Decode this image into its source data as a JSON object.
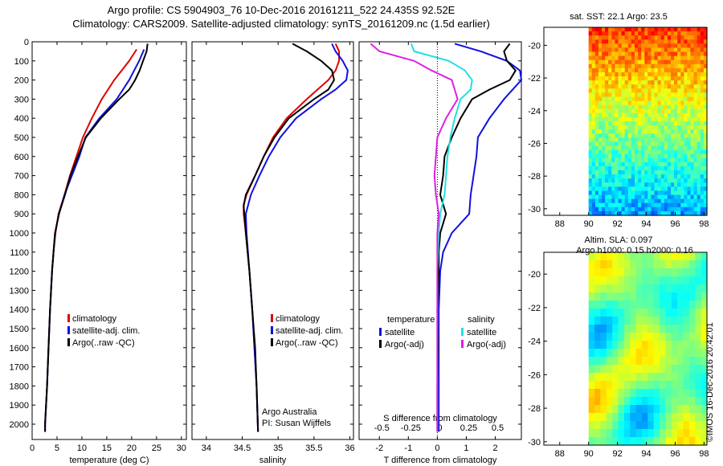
{
  "header": {
    "line1": "Argo profile: CS 5904903_76 10-Dec-2016 20161211_522 24.435S 92.52E",
    "line2": "Climatology: CARS2009. Satellite-adjusted climatology: synTS_20161209.nc (1.5d earlier)"
  },
  "colors": {
    "climatology": "#e00000",
    "satellite": "#1010e0",
    "argo": "#000000",
    "argo_salinity_diff": "#e020e0",
    "satellite_salinity_diff": "#20e0e0"
  },
  "chart_data": [
    {
      "id": "temperature",
      "type": "line",
      "xlabel": "temperature (deg C)",
      "ylabel": "",
      "xlim": [
        0,
        31
      ],
      "ylim": [
        2080,
        0
      ],
      "xticks": [
        0,
        5,
        10,
        15,
        20,
        25,
        30
      ],
      "yticks": [
        0,
        100,
        200,
        300,
        400,
        500,
        600,
        700,
        800,
        900,
        1000,
        1100,
        1200,
        1300,
        1400,
        1500,
        1600,
        1700,
        1800,
        1900,
        2000
      ],
      "legend": [
        "climatology",
        "satellite-adj. clim.",
        "Argo(..raw -QC)"
      ],
      "series": [
        {
          "name": "climatology",
          "color": "#e00000",
          "depth": [
            40,
            100,
            200,
            300,
            400,
            500,
            600,
            700,
            800,
            900,
            1000,
            1100,
            1200,
            1400,
            1600,
            1800,
            2000,
            2040
          ],
          "values": [
            21,
            19.5,
            16.5,
            14,
            12,
            10.2,
            8.9,
            7.6,
            6.5,
            5.3,
            4.7,
            4.3,
            4,
            3.6,
            3.3,
            3,
            2.6,
            2.6
          ]
        },
        {
          "name": "satellite-adj. clim.",
          "color": "#1010e0",
          "depth": [
            40,
            100,
            200,
            300,
            400,
            500,
            600,
            700,
            800,
            900,
            1000,
            1100,
            1200,
            1400,
            1600,
            1800,
            2000,
            2040
          ],
          "values": [
            22.5,
            21.5,
            19.5,
            17,
            13.5,
            10.7,
            9.5,
            8,
            6.5,
            5.4,
            4.6,
            4.3,
            4,
            3.6,
            3.3,
            3,
            2.6,
            2.6
          ]
        },
        {
          "name": "Argo(..raw -QC)",
          "color": "#000000",
          "depth": [
            10,
            50,
            100,
            150,
            200,
            250,
            300,
            400,
            500,
            600,
            700,
            800,
            900,
            1000,
            1100,
            1200,
            1400,
            1600,
            1800,
            2000,
            2040
          ],
          "values": [
            23.2,
            23,
            22.3,
            21.6,
            20.7,
            19.5,
            17.5,
            13.8,
            10.8,
            9.2,
            7.7,
            6.6,
            5.4,
            4.6,
            4.3,
            4,
            3.6,
            3.3,
            3,
            2.6,
            2.6
          ]
        }
      ]
    },
    {
      "id": "salinity",
      "type": "line",
      "xlabel": "salinity",
      "ylabel": "",
      "xlim": [
        33.8,
        36.05
      ],
      "ylim": [
        2080,
        0
      ],
      "xticks": [
        34,
        34.5,
        35,
        35.5,
        36
      ],
      "legend": [
        "climatology",
        "satellite-adj. clim.",
        "Argo(..raw -QC)"
      ],
      "annotation": [
        "Argo Australia",
        "PI: Susan Wijffels"
      ],
      "series": [
        {
          "name": "climatology",
          "color": "#e00000",
          "depth": [
            10,
            50,
            100,
            150,
            200,
            300,
            400,
            500,
            600,
            700,
            800,
            850,
            900,
            1000,
            1200,
            1400,
            1600,
            1800,
            2040
          ],
          "values": [
            35.8,
            35.85,
            35.85,
            35.8,
            35.7,
            35.4,
            35.12,
            34.93,
            34.8,
            34.68,
            34.56,
            34.52,
            34.52,
            34.55,
            34.6,
            34.64,
            34.67,
            34.7,
            34.72
          ]
        },
        {
          "name": "satellite-adj. clim.",
          "color": "#1010e0",
          "depth": [
            10,
            50,
            100,
            150,
            200,
            250,
            300,
            400,
            500,
            600,
            700,
            800,
            900,
            1000,
            1200,
            1400,
            1600,
            1800,
            2040
          ],
          "values": [
            35.75,
            35.8,
            35.9,
            35.97,
            35.95,
            35.8,
            35.6,
            35.25,
            35.03,
            34.87,
            34.74,
            34.62,
            34.55,
            34.56,
            34.6,
            34.64,
            34.67,
            34.7,
            34.72
          ]
        },
        {
          "name": "Argo(..raw -QC)",
          "color": "#000000",
          "depth": [
            10,
            50,
            100,
            150,
            200,
            250,
            300,
            400,
            500,
            600,
            700,
            800,
            860,
            900,
            1000,
            1200,
            1400,
            1600,
            1800,
            2040
          ],
          "values": [
            35.2,
            35.4,
            35.6,
            35.75,
            35.78,
            35.7,
            35.5,
            35.15,
            34.95,
            34.8,
            34.68,
            34.55,
            34.52,
            34.53,
            34.55,
            34.6,
            34.64,
            34.68,
            34.7,
            34.72
          ]
        }
      ]
    },
    {
      "id": "difference",
      "type": "line",
      "xlabel": "T difference from climatology",
      "xlabel2": "S difference from climatology",
      "xlim": [
        -2.7,
        2.9
      ],
      "ylim": [
        2080,
        0
      ],
      "xticks": [
        -2,
        -1,
        0,
        1,
        2
      ],
      "xticks_s": [
        "-0.5",
        "-0.25",
        "0",
        "0.25",
        "0.5"
      ],
      "xticks_s_pos": [
        -2,
        -1,
        0,
        1,
        2
      ],
      "legend_titles": [
        "temperature",
        "salinity"
      ],
      "legend": [
        "satellite",
        "Argo(-adj)",
        "satellite",
        "Argo(-adj)"
      ],
      "series": [
        {
          "name": "satellite",
          "group": "temperature",
          "color": "#1010e0",
          "depth": [
            10,
            50,
            100,
            150,
            200,
            300,
            400,
            500,
            600,
            700,
            800,
            900,
            1000,
            1100,
            1200,
            1400,
            1600,
            1800,
            2040
          ],
          "values": [
            0.6,
            1.5,
            2.4,
            2.85,
            2.9,
            2.3,
            1.8,
            1.4,
            1.35,
            1.25,
            1.15,
            1.1,
            0.5,
            0.2,
            0.1,
            0.05,
            0.05,
            0.05,
            0.05
          ]
        },
        {
          "name": "Argo(-adj)",
          "group": "temperature",
          "color": "#000000",
          "depth": [
            10,
            50,
            100,
            150,
            200,
            250,
            300,
            400,
            500,
            600,
            700,
            800,
            900,
            1000,
            1100,
            1200,
            1400,
            1600,
            1800,
            2040
          ],
          "values": [
            2.5,
            2.3,
            2.4,
            2.7,
            2.5,
            1.8,
            1.2,
            0.8,
            0.5,
            0.25,
            0.2,
            0.1,
            0.3,
            0.1,
            0.05,
            0.05,
            0.0,
            0.02,
            0.0,
            0.0
          ]
        },
        {
          "name": "satellite",
          "group": "salinity",
          "color": "#20e0e0",
          "depth": [
            10,
            50,
            100,
            150,
            200,
            250,
            300,
            400,
            500,
            600,
            700,
            800,
            900,
            1000,
            1200,
            1400,
            1600,
            1800,
            2040
          ],
          "values": [
            -0.9,
            -0.8,
            0.4,
            0.95,
            1.2,
            1.15,
            0.8,
            0.6,
            0.45,
            0.35,
            0.3,
            0.25,
            0.1,
            0.05,
            0.0,
            0.0,
            0.0,
            0.0,
            0.0
          ]
        },
        {
          "name": "Argo(-adj)",
          "group": "salinity",
          "color": "#e020e0",
          "depth": [
            10,
            50,
            100,
            150,
            200,
            300,
            400,
            500,
            600,
            700,
            800,
            900,
            1000,
            1200,
            1400,
            1600,
            1800,
            2040
          ],
          "values": [
            -2.3,
            -2.0,
            -0.8,
            -0.2,
            0.5,
            0.7,
            0.3,
            0.0,
            -0.05,
            -0.1,
            -0.05,
            0.05,
            0.0,
            0.0,
            0.0,
            0.0,
            0.0,
            0.0
          ]
        }
      ]
    }
  ],
  "maps": [
    {
      "id": "sst-map",
      "title": "sat. SST: 22.1  Argo: 23.5",
      "xticks": [
        "88",
        "90",
        "92",
        "94",
        "96",
        "98"
      ],
      "yticks": [
        "-20",
        "-22",
        "-24",
        "-26",
        "-28",
        "-30"
      ],
      "type": "heatmap"
    },
    {
      "id": "sla-map",
      "title1": "Altim. SLA: 0.097",
      "title2": "Argo h1000: 0.15 h2000: 0.16",
      "xticks": [
        "88",
        "90",
        "92",
        "94",
        "96",
        "98"
      ],
      "yticks": [
        "-20",
        "-22",
        "-24",
        "-26",
        "-28",
        "-30"
      ],
      "type": "heatmap"
    }
  ],
  "footer": {
    "credit": "©IMOS 16-Dec-2016 20:42:01"
  }
}
